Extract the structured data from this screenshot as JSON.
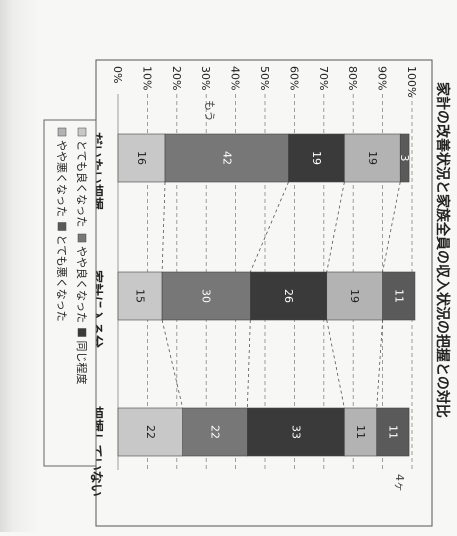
{
  "chart_data": {
    "type": "bar",
    "orientation": "stacked-100",
    "title": "家計の改善状況と家族全員の収入状況の把握との対比",
    "categories": [
      "だいたい把握",
      "家計に入る分",
      "把握していない"
    ],
    "series": [
      {
        "name": "とても良くなった",
        "values": [
          16,
          15,
          22
        ],
        "color": "#c8c8c8"
      },
      {
        "name": "やや良くなった",
        "values": [
          42,
          30,
          22
        ],
        "color": "#777777"
      },
      {
        "name": "同じ程度",
        "values": [
          19,
          26,
          33
        ],
        "color": "#3a3a3a"
      },
      {
        "name": "やや悪くなった",
        "values": [
          19,
          19,
          11
        ],
        "color": "#b3b3b3"
      },
      {
        "name": "とても悪くなった",
        "values": [
          3,
          11,
          11
        ],
        "color": "#5a5a5a"
      }
    ],
    "yticks": [
      "0%",
      "10%",
      "20%",
      "30%",
      "40%",
      "50%",
      "60%",
      "70%",
      "80%",
      "90%",
      "100%"
    ],
    "ylim": [
      0,
      100
    ],
    "grid": true,
    "legend_position": "bottom-left",
    "handwritten_notes": [
      "もう",
      "4ヶ"
    ]
  }
}
